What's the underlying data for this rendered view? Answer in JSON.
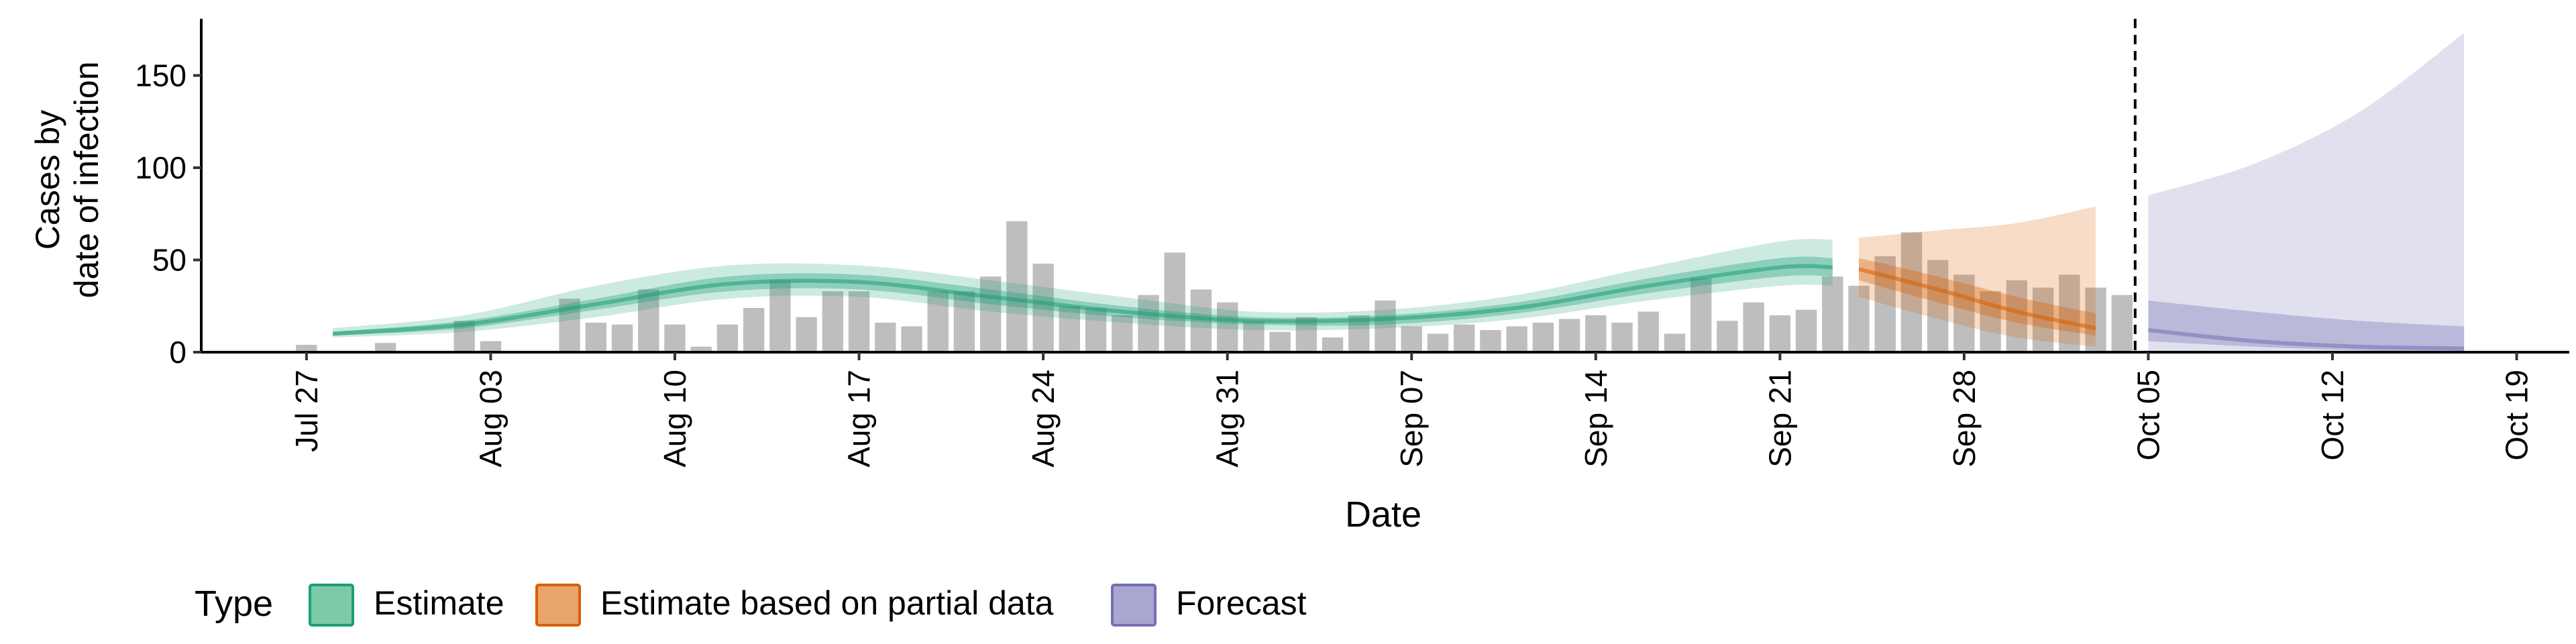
{
  "chart_data": {
    "type": "bar",
    "title": "",
    "xlabel": "Date",
    "ylabel_lines": [
      "Cases by",
      "date of infection"
    ],
    "ylim": [
      0,
      180
    ],
    "yticks": [
      0,
      50,
      100,
      150
    ],
    "xlim": [
      "2020-07-23",
      "2020-10-21"
    ],
    "xticks": [
      "2020-07-27",
      "2020-08-03",
      "2020-08-10",
      "2020-08-17",
      "2020-08-24",
      "2020-08-31",
      "2020-09-07",
      "2020-09-14",
      "2020-09-21",
      "2020-09-28",
      "2020-10-05",
      "2020-10-12",
      "2020-10-19"
    ],
    "xtick_labels": [
      "Jul 27",
      "Aug 03",
      "Aug 10",
      "Aug 17",
      "Aug 24",
      "Aug 31",
      "Sep 07",
      "Sep 14",
      "Sep 21",
      "Sep 28",
      "Oct 05",
      "Oct 12",
      "Oct 19"
    ],
    "vline_date": "2020-10-04",
    "bar_color": "#bebebe",
    "bars": {
      "start_date": "2020-07-27",
      "values": [
        4,
        0,
        0,
        5,
        0,
        0,
        17,
        6,
        0,
        0,
        29,
        16,
        15,
        34,
        15,
        3,
        15,
        24,
        39,
        19,
        33,
        33,
        16,
        14,
        33,
        33,
        41,
        71,
        48,
        25,
        24,
        20,
        31,
        54,
        34,
        27,
        17,
        11,
        19,
        8,
        20,
        28,
        14,
        10,
        15,
        12,
        14,
        16,
        18,
        20,
        16,
        22,
        10,
        40,
        17,
        27,
        20,
        23,
        41,
        36,
        52,
        65,
        50,
        42,
        33,
        39,
        35,
        42,
        35,
        31
      ]
    },
    "legend": {
      "title": "Type",
      "position": "bottom",
      "items": [
        {
          "label": "Estimate",
          "fill": "#7ccaa8",
          "stroke": "#1b9e77"
        },
        {
          "label": "Estimate based on partial data",
          "fill": "#e9a46b",
          "stroke": "#d95f02"
        },
        {
          "label": "Forecast",
          "fill": "#a9a7d0",
          "stroke": "#7570b3"
        }
      ]
    },
    "series": [
      {
        "name": "Estimate",
        "color": "#1b9e77",
        "dates": [
          "2020-07-28",
          "2020-08-02",
          "2020-08-07",
          "2020-08-12",
          "2020-08-17",
          "2020-08-22",
          "2020-08-27",
          "2020-09-01",
          "2020-09-06",
          "2020-09-11",
          "2020-09-16",
          "2020-09-21",
          "2020-09-23"
        ],
        "median": [
          10,
          15,
          26,
          37,
          38,
          30,
          22,
          17,
          18,
          24,
          36,
          46,
          46
        ],
        "inner_lower": [
          9,
          13,
          23,
          33,
          34,
          26,
          19,
          15,
          15,
          21,
          32,
          41,
          41
        ],
        "inner_upper": [
          11,
          17,
          29,
          41,
          42,
          34,
          25,
          19,
          20,
          27,
          40,
          51,
          51
        ],
        "outer_lower": [
          8,
          11,
          19,
          29,
          30,
          22,
          16,
          12,
          13,
          18,
          28,
          36,
          36
        ],
        "outer_upper": [
          13,
          20,
          36,
          47,
          47,
          39,
          30,
          22,
          23,
          31,
          46,
          60,
          61
        ]
      },
      {
        "name": "Estimate based on partial data",
        "color": "#d95f02",
        "dates": [
          "2020-09-24",
          "2020-09-27",
          "2020-09-30",
          "2020-10-03"
        ],
        "median": [
          45,
          34,
          22,
          13
        ],
        "inner_lower": [
          39,
          27,
          16,
          9
        ],
        "inner_upper": [
          51,
          41,
          30,
          21
        ],
        "outer_lower": [
          30,
          18,
          8,
          3
        ],
        "outer_upper": [
          62,
          66,
          70,
          79
        ]
      },
      {
        "name": "Forecast",
        "color": "#7570b3",
        "dates": [
          "2020-10-05",
          "2020-10-09",
          "2020-10-13",
          "2020-10-17"
        ],
        "median": [
          12,
          6,
          3,
          2
        ],
        "inner_lower": [
          6,
          3,
          1,
          0
        ],
        "inner_upper": [
          28,
          22,
          17,
          14
        ],
        "outer_lower": [
          0,
          0,
          0,
          0
        ],
        "outer_upper": [
          85,
          102,
          130,
          173
        ]
      }
    ]
  }
}
